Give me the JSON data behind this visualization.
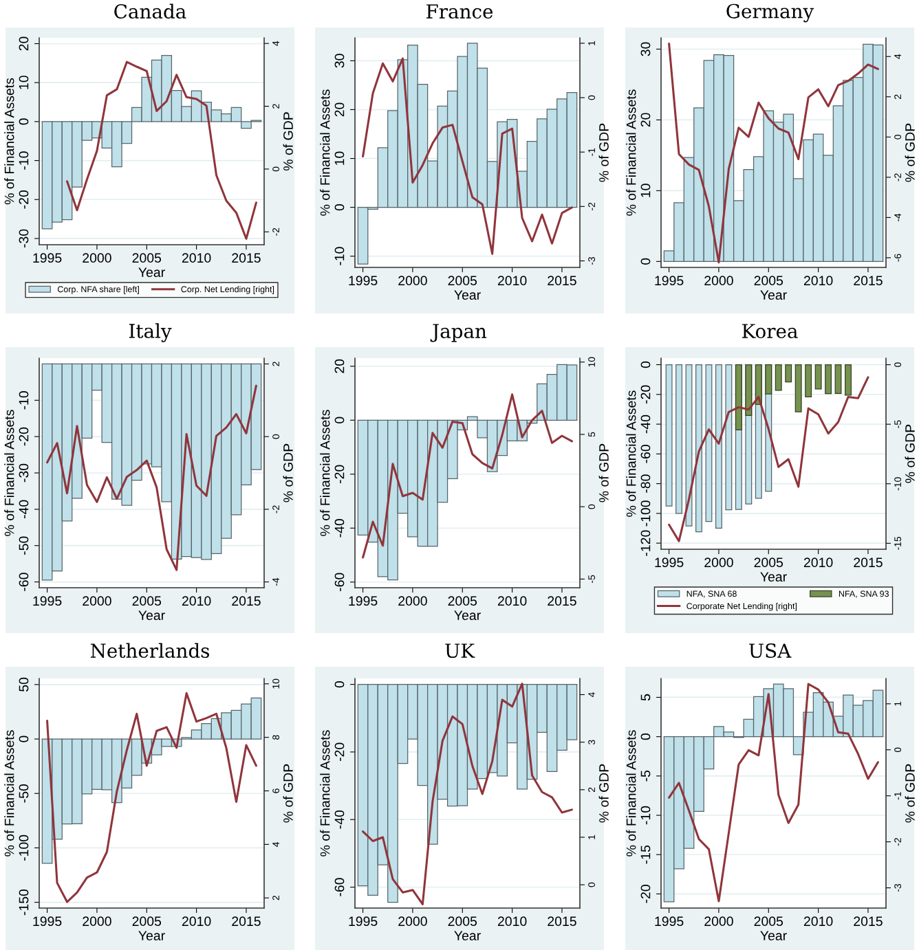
{
  "chart_data": [
    {
      "type": "bar",
      "title": "Canada",
      "xlabel": "Year",
      "ylabel": "% of Financial Assets",
      "y2label": "% of GDP",
      "x": [
        1995,
        1996,
        1997,
        1998,
        1999,
        2000,
        2001,
        2002,
        2003,
        2004,
        2005,
        2006,
        2007,
        2008,
        2009,
        2010,
        2011,
        2012,
        2013,
        2014,
        2015,
        2016
      ],
      "xlim": [
        1994.2,
        2016.8
      ],
      "xticks": [
        1995,
        2000,
        2005,
        2010,
        2015
      ],
      "ylim": [
        -31.6,
        21.5
      ],
      "yticks": [
        -30,
        -20,
        -10,
        0,
        10,
        20
      ],
      "y2lim": [
        -2.41,
        4.18
      ],
      "y2ticks": [
        -2,
        0,
        2,
        4
      ],
      "grid": "y",
      "legend": "bottom",
      "series": [
        {
          "name": "Corp. NFA share [left]",
          "color": "#c0e0ea",
          "values": [
            -27.5,
            -25.8,
            -25.2,
            -16.8,
            -4.8,
            -4.2,
            -6.8,
            -11.6,
            -5.6,
            3.6,
            11.4,
            15.8,
            17,
            8,
            3.9,
            7.9,
            5,
            3,
            2,
            3.6,
            -1.7,
            0.3
          ]
        },
        {
          "name": "Corp. Net Lending [right]",
          "type": "line",
          "axis": "y2",
          "color": "#90353b",
          "values": [
            null,
            null,
            -0.39,
            -1.31,
            -0.33,
            0.58,
            2.35,
            2.54,
            3.41,
            3.26,
            3.12,
            1.85,
            2.16,
            3.0,
            2.29,
            2.23,
            2.02,
            -0.2,
            -1.01,
            -1.39,
            -2.22,
            -1.07
          ]
        }
      ]
    },
    {
      "type": "bar",
      "title": "France",
      "xlabel": "Year",
      "ylabel": "% of Financial Assets",
      "y2label": "% of GDP",
      "x": [
        1995,
        1996,
        1997,
        1998,
        1999,
        2000,
        2001,
        2002,
        2003,
        2004,
        2005,
        2006,
        2007,
        2008,
        2009,
        2010,
        2011,
        2012,
        2013,
        2014,
        2015,
        2016
      ],
      "xlim": [
        1994.2,
        2016.8
      ],
      "xticks": [
        1995,
        2000,
        2005,
        2010,
        2015
      ],
      "ylim": [
        -12.3,
        34.7
      ],
      "yticks": [
        -10,
        0,
        10,
        20,
        30
      ],
      "y2lim": [
        -3.12,
        1.1
      ],
      "y2ticks": [
        -3,
        -2,
        -1,
        0,
        1
      ],
      "grid": "y",
      "series": [
        {
          "color": "#c0e0ea",
          "values": [
            -11.6,
            -0.4,
            12.2,
            19.8,
            30.2,
            33.2,
            25.2,
            9.5,
            20.7,
            23.8,
            30.9,
            33.6,
            28.5,
            9.4,
            17.5,
            18.0,
            7.4,
            13.5,
            18.1,
            20.1,
            22.2,
            23.5
          ]
        },
        {
          "type": "line",
          "axis": "y2",
          "color": "#90353b",
          "values": [
            -1.08,
            0.08,
            0.63,
            0.3,
            0.72,
            -1.56,
            -1.24,
            -0.84,
            -0.55,
            -0.5,
            -1.17,
            -1.83,
            -1.96,
            -2.87,
            -0.66,
            -0.57,
            -2.21,
            -2.64,
            -2.15,
            -2.68,
            -2.12,
            -2.02
          ]
        }
      ]
    },
    {
      "type": "bar",
      "title": "Germany",
      "xlabel": "Year",
      "ylabel": "% of Financial Assets",
      "y2label": "% of GDP",
      "x": [
        1995,
        1996,
        1997,
        1998,
        1999,
        2000,
        2001,
        2002,
        2003,
        2004,
        2005,
        2006,
        2007,
        2008,
        2009,
        2010,
        2011,
        2012,
        2013,
        2014,
        2015,
        2016
      ],
      "xlim": [
        1994.2,
        2016.8
      ],
      "xticks": [
        1995,
        2000,
        2005,
        2010,
        2015
      ],
      "ylim": [
        -0.84,
        31.6
      ],
      "yticks": [
        0,
        10,
        20,
        30
      ],
      "y2lim": [
        -6.48,
        4.93
      ],
      "y2ticks": [
        -6,
        -4,
        -2,
        0,
        2,
        4
      ],
      "grid": "y",
      "series": [
        {
          "color": "#c0e0ea",
          "values": [
            1.5,
            8.3,
            14.7,
            21.7,
            28.4,
            29.2,
            29.1,
            8.6,
            13.0,
            14.8,
            21.3,
            19.7,
            20.8,
            11.7,
            17.2,
            18.0,
            15.0,
            22.0,
            25.6,
            26.0,
            30.7,
            30.6
          ]
        },
        {
          "type": "line",
          "axis": "y2",
          "color": "#90353b",
          "values": [
            4.64,
            -0.85,
            -1.37,
            -1.63,
            -3.44,
            -6.23,
            -1.59,
            0.46,
            0.01,
            1.71,
            0.93,
            0.42,
            0.22,
            -1.1,
            1.97,
            2.37,
            1.53,
            2.58,
            2.79,
            3.15,
            3.6,
            3.38
          ]
        }
      ]
    },
    {
      "type": "bar",
      "title": "Italy",
      "xlabel": "Year",
      "ylabel": "% of Financial Assets",
      "y2label": "% of GDP",
      "x": [
        1995,
        1996,
        1997,
        1998,
        1999,
        2000,
        2001,
        2002,
        2003,
        2004,
        2005,
        2006,
        2007,
        2008,
        2009,
        2010,
        2011,
        2012,
        2013,
        2014,
        2015,
        2016
      ],
      "xlim": [
        1994.2,
        2016.8
      ],
      "xticks": [
        1995,
        2000,
        2005,
        2010,
        2015
      ],
      "ylim": [
        -61.6,
        1.6
      ],
      "yticks": [
        -60,
        -50,
        -40,
        -30,
        -20,
        -10
      ],
      "y2lim": [
        -4.16,
        2.16
      ],
      "y2ticks": [
        -4,
        -2,
        0,
        2
      ],
      "grid": "y",
      "series": [
        {
          "color": "#c0e0ea",
          "values": [
            -59.5,
            -57.0,
            -43.2,
            -37.0,
            -20.4,
            -7.2,
            -21.6,
            -37.2,
            -38.9,
            -32.0,
            -27.5,
            -28.3,
            -37.9,
            -53.7,
            -53.0,
            -53.3,
            -53.8,
            -52.2,
            -48.0,
            -41.5,
            -33.3,
            -29.1
          ]
        },
        {
          "type": "line",
          "axis": "y2",
          "color": "#90353b",
          "values": [
            -0.71,
            -0.18,
            -1.56,
            0.29,
            -1.33,
            -1.8,
            -1.12,
            -1.71,
            -1.11,
            -0.92,
            -0.66,
            -1.4,
            -3.1,
            -3.67,
            0.07,
            -1.35,
            -1.63,
            0.02,
            0.25,
            0.62,
            0.09,
            1.4
          ]
        }
      ]
    },
    {
      "type": "bar",
      "title": "Japan",
      "xlabel": "Year",
      "ylabel": "% of Financial Assets",
      "y2label": "% of GDP",
      "x": [
        1995,
        1996,
        1997,
        1998,
        1999,
        2000,
        2001,
        2002,
        2003,
        2004,
        2005,
        2006,
        2007,
        2008,
        2009,
        2010,
        2011,
        2012,
        2013,
        2014,
        2015,
        2016
      ],
      "xlim": [
        1994.2,
        2016.8
      ],
      "xticks": [
        1995,
        2000,
        2005,
        2010,
        2015
      ],
      "ylim": [
        -62.1,
        23.0
      ],
      "yticks": [
        -60,
        -40,
        -20,
        0,
        20
      ],
      "y2lim": [
        -5.6,
        10.27
      ],
      "y2ticks": [
        -5,
        0,
        5,
        10
      ],
      "grid": "y",
      "series": [
        {
          "color": "#c0e0ea",
          "values": [
            -42.6,
            -45.2,
            -58.0,
            -59.2,
            -34.5,
            -43.2,
            -46.7,
            -46.7,
            -30.4,
            -21.7,
            -3.6,
            1.3,
            -6.5,
            -19.1,
            -13.1,
            -7.7,
            -7.7,
            -1.1,
            13.5,
            17.0,
            20.6,
            20.5
          ]
        },
        {
          "type": "line",
          "axis": "y2",
          "color": "#90353b",
          "values": [
            -3.51,
            -1.04,
            -2.69,
            2.96,
            0.73,
            0.96,
            0.49,
            5.1,
            4.08,
            5.88,
            5.78,
            3.63,
            3.02,
            2.65,
            4.96,
            7.76,
            4.8,
            5.98,
            6.63,
            4.41,
            4.9,
            4.53
          ]
        }
      ]
    },
    {
      "type": "bar",
      "title": "Korea",
      "xlabel": "Year",
      "ylabel": "% of Financial Assets",
      "y2label": "% of GDP",
      "x": [
        1995,
        1996,
        1997,
        1998,
        1999,
        2000,
        2001,
        2002,
        2003,
        2004,
        2005,
        2006,
        2007,
        2008,
        2009,
        2010,
        2011,
        2012,
        2013,
        2014,
        2015
      ],
      "xlim": [
        1994.2,
        2016.8
      ],
      "xticks": [
        1995,
        2000,
        2005,
        2010,
        2015
      ],
      "ylim": [
        -124.1,
        4.4
      ],
      "yticks": [
        -120,
        -100,
        -80,
        -60,
        -40,
        -20,
        0
      ],
      "y2lim": [
        -15.5,
        0.55
      ],
      "y2ticks": [
        -15,
        -10,
        -5,
        0
      ],
      "grid": "y",
      "legend": "bottom",
      "series": [
        {
          "name": "NFA, SNA 68",
          "color": "#c0e0ea",
          "values": [
            -95.0,
            -100,
            -108.4,
            -112.4,
            -105.4,
            -110.0,
            -97.6,
            -97.4,
            -93.6,
            -89.8,
            -85.1,
            null,
            null,
            null,
            null,
            null,
            null,
            null,
            null,
            null,
            null
          ]
        },
        {
          "name": "NFA, SNA 93",
          "color": "#75924f",
          "values": [
            null,
            null,
            null,
            null,
            null,
            null,
            null,
            -43.8,
            -34.1,
            -26.7,
            -19.7,
            -17.3,
            -11.6,
            -31.7,
            -21.7,
            -16.3,
            -19.5,
            -19.3,
            -20.5,
            null,
            null
          ]
        },
        {
          "name": "Corporate Net Lending [right]",
          "type": "line",
          "axis": "y2",
          "color": "#90353b",
          "values": [
            -13.44,
            -14.82,
            -11.31,
            -7.29,
            -5.43,
            -6.63,
            -3.97,
            -3.57,
            -3.77,
            -2.71,
            -5.4,
            -8.59,
            -7.94,
            -10.25,
            -3.67,
            -4.17,
            -5.78,
            -4.82,
            -2.71,
            -2.81,
            -1.06
          ]
        }
      ]
    },
    {
      "type": "bar",
      "title": "Netherlands",
      "xlabel": "Year",
      "ylabel": "% of Financial Assets",
      "y2label": "% of GDP",
      "x": [
        1995,
        1996,
        1997,
        1998,
        1999,
        2000,
        2001,
        2002,
        2003,
        2004,
        2005,
        2006,
        2007,
        2008,
        2009,
        2010,
        2011,
        2012,
        2013,
        2014,
        2015,
        2016
      ],
      "xlim": [
        1994.2,
        2016.8
      ],
      "xticks": [
        1995,
        2000,
        2005,
        2010,
        2015
      ],
      "ylim": [
        -155.3,
        55.6
      ],
      "yticks": [
        -150,
        -100,
        -50,
        0,
        50
      ],
      "y2lim": [
        1.62,
        10.2
      ],
      "y2ticks": [
        2,
        4,
        6,
        8,
        10
      ],
      "grid": "y",
      "series": [
        {
          "color": "#c0e0ea",
          "values": [
            -114.1,
            -92.1,
            -78.0,
            -77.8,
            -50.4,
            -46.3,
            -46.6,
            -58.5,
            -45.0,
            -33.3,
            -22.2,
            -14.6,
            -6.8,
            -6.8,
            1.4,
            8.4,
            14.1,
            18.7,
            24.1,
            26.3,
            32.2,
            37.7
          ]
        },
        {
          "type": "line",
          "axis": "y2",
          "color": "#90353b",
          "values": [
            8.62,
            2.56,
            1.85,
            2.2,
            2.76,
            2.95,
            3.72,
            5.98,
            7.52,
            8.88,
            6.94,
            8.24,
            8.38,
            7.61,
            9.65,
            8.59,
            8.72,
            8.88,
            7.6,
            5.59,
            7.71,
            6.94
          ]
        }
      ]
    },
    {
      "type": "bar",
      "title": "UK",
      "xlabel": "Year",
      "ylabel": "% of Financial Assets",
      "y2label": "% of GDP",
      "x": [
        1995,
        1996,
        1997,
        1998,
        1999,
        2000,
        2001,
        2002,
        2003,
        2004,
        2005,
        2006,
        2007,
        2008,
        2009,
        2010,
        2011,
        2012,
        2013,
        2014,
        2015,
        2016
      ],
      "xlim": [
        1994.2,
        2016.8
      ],
      "xticks": [
        1995,
        2000,
        2005,
        2010,
        2015
      ],
      "ylim": [
        -66.2,
        1.75
      ],
      "yticks": [
        -60,
        -40,
        -20,
        0
      ],
      "y2lim": [
        -0.49,
        4.34
      ],
      "y2ticks": [
        0,
        1,
        2,
        3,
        4
      ],
      "grid": "y",
      "series": [
        {
          "color": "#c0e0ea",
          "values": [
            -59.6,
            -62.4,
            -53.4,
            -64.5,
            -23.4,
            -16.2,
            -29.9,
            -47.3,
            -34.0,
            -36.0,
            -35.9,
            -31.0,
            -27.9,
            -26.1,
            -27.1,
            -17.3,
            -31.0,
            -28.1,
            -14.2,
            -25.8,
            -19.5,
            -16.4
          ]
        },
        {
          "type": "line",
          "axis": "y2",
          "color": "#90353b",
          "values": [
            1.12,
            0.92,
            1.0,
            0.12,
            -0.16,
            -0.11,
            -0.41,
            1.75,
            3.03,
            3.54,
            3.38,
            2.5,
            1.91,
            2.6,
            3.89,
            3.75,
            4.23,
            2.3,
            1.95,
            1.84,
            1.52,
            1.58
          ]
        }
      ]
    },
    {
      "type": "bar",
      "title": "USA",
      "xlabel": "Year",
      "ylabel": "% of Financial Assets",
      "y2label": "% of GDP",
      "x": [
        1995,
        1996,
        1997,
        1998,
        1999,
        2000,
        2001,
        2002,
        2003,
        2004,
        2005,
        2006,
        2007,
        2008,
        2009,
        2010,
        2011,
        2012,
        2013,
        2014,
        2015,
        2016
      ],
      "xlim": [
        1994.2,
        2016.8
      ],
      "xticks": [
        1995,
        2000,
        2005,
        2010,
        2015
      ],
      "ylim": [
        -21.8,
        7.4
      ],
      "yticks": [
        -20,
        -15,
        -10,
        -5,
        0,
        5
      ],
      "y2lim": [
        -3.44,
        1.55
      ],
      "y2ticks": [
        -3,
        -2,
        -1,
        0,
        1
      ],
      "grid": "y",
      "series": [
        {
          "color": "#c0e0ea",
          "values": [
            -21.0,
            -16.8,
            -14.2,
            -9.5,
            -4.1,
            1.3,
            0.6,
            -0.1,
            2.2,
            5.1,
            6.1,
            6.7,
            6.1,
            -2.3,
            3.1,
            5.6,
            4.4,
            2.6,
            5.3,
            4.0,
            4.6,
            5.9
          ]
        },
        {
          "type": "line",
          "axis": "y2",
          "color": "#90353b",
          "values": [
            -1.04,
            -0.72,
            -1.32,
            -1.94,
            -2.16,
            -3.29,
            -1.81,
            -0.32,
            -0.01,
            -0.12,
            1.21,
            -0.98,
            -1.59,
            -1.19,
            1.43,
            1.31,
            1.03,
            0.38,
            0.35,
            -0.09,
            -0.63,
            -0.27
          ]
        }
      ]
    }
  ]
}
